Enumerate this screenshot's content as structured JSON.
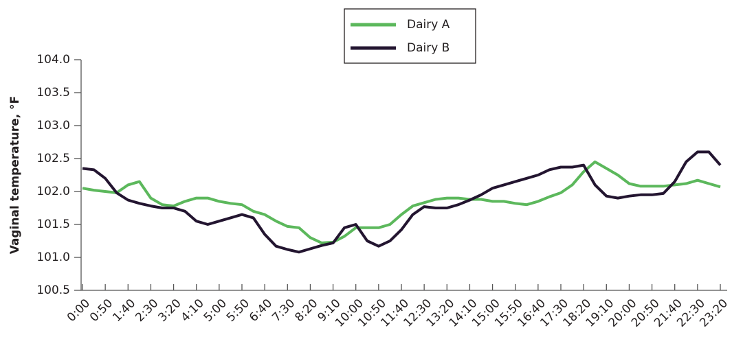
{
  "chart_data": {
    "type": "line",
    "y_label": "Vaginal temperature, °F",
    "categories": [
      "0:00",
      null,
      "0:50",
      null,
      "1:40",
      null,
      "2:30",
      null,
      "3:20",
      null,
      "4:10",
      null,
      "5:00",
      null,
      "5:50",
      null,
      "6:40",
      null,
      "7:30",
      null,
      "8:20",
      null,
      "9:10",
      null,
      "10:00",
      null,
      "10:50",
      null,
      "11:40",
      null,
      "12:30",
      null,
      "13:20",
      null,
      "14:10",
      null,
      "15:00",
      null,
      "15:50",
      null,
      "16:40",
      null,
      "17:30",
      null,
      "18:20",
      null,
      "19:10",
      null,
      "20:00",
      null,
      "20:50",
      null,
      "21:40",
      null,
      "22:30",
      null,
      "23:20"
    ],
    "series": [
      {
        "name": "Dairy A",
        "color": "#5cb85c",
        "values": [
          102.05,
          102.02,
          102.0,
          101.98,
          102.1,
          102.15,
          101.9,
          101.8,
          101.78,
          101.85,
          101.9,
          101.9,
          101.85,
          101.82,
          101.8,
          101.7,
          101.65,
          101.55,
          101.47,
          101.45,
          101.3,
          101.22,
          101.23,
          101.32,
          101.45,
          101.45,
          101.45,
          101.5,
          101.65,
          101.78,
          101.83,
          101.88,
          101.9,
          101.9,
          101.88,
          101.88,
          101.85,
          101.85,
          101.82,
          101.8,
          101.85,
          101.92,
          101.98,
          102.1,
          102.3,
          102.45,
          102.35,
          102.25,
          102.12,
          102.08,
          102.08,
          102.08,
          102.1,
          102.12,
          102.17,
          102.12,
          102.07
        ]
      },
      {
        "name": "Dairy B",
        "color": "#231530",
        "values": [
          102.35,
          102.33,
          102.2,
          101.98,
          101.87,
          101.82,
          101.78,
          101.75,
          101.75,
          101.7,
          101.55,
          101.5,
          101.55,
          101.6,
          101.65,
          101.6,
          101.35,
          101.17,
          101.12,
          101.08,
          101.13,
          101.18,
          101.22,
          101.45,
          101.5,
          101.25,
          101.17,
          101.25,
          101.42,
          101.65,
          101.77,
          101.75,
          101.75,
          101.8,
          101.87,
          101.95,
          102.05,
          102.1,
          102.15,
          102.2,
          102.25,
          102.33,
          102.37,
          102.37,
          102.4,
          102.1,
          101.93,
          101.9,
          101.93,
          101.95,
          101.95,
          101.97,
          102.15,
          102.45,
          102.6,
          102.6,
          102.4
        ]
      }
    ],
    "ylim": [
      100.5,
      104.0
    ],
    "yticks": [
      100.5,
      {
        "value": 101,
        "label": "101.0"
      },
      101.5,
      {
        "value": 102,
        "label": "102.0"
      },
      102.5,
      {
        "value": 103,
        "label": "103.0"
      },
      103.5,
      {
        "value": 104,
        "label": "104.0"
      }
    ],
    "legend": "top"
  }
}
